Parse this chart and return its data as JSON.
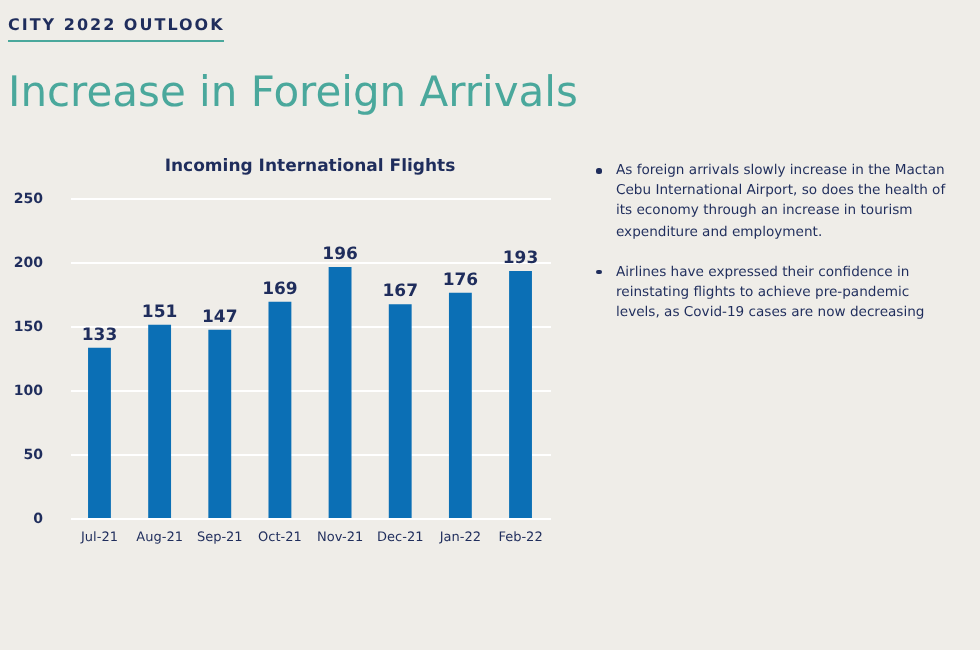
{
  "chart_data": {
    "type": "bar",
    "title": "Incoming International Flights",
    "categories": [
      "Jul-21",
      "Aug-21",
      "Sep-21",
      "Oct-21",
      "Nov-21",
      "Dec-21",
      "Jan-22",
      "Feb-22"
    ],
    "values": [
      133,
      151,
      147,
      169,
      196,
      167,
      176,
      193
    ],
    "color": "#0b6fb5",
    "ylim": [
      0,
      250
    ],
    "yticks": [
      0,
      50,
      100,
      150,
      200,
      250
    ],
    "grid": "y",
    "data_labels": true,
    "annotations": [
      "CITY 2022 OUTLOOK",
      "Increase in Foreign Arrivals",
      "As foreign arrivals slowly increase in the Mactan Cebu International Airport, so does the health of its economy through an increase in tourism expenditure and employment.",
      "Airlines have expressed their confidence in reinstating flights to achieve pre-pandemic levels, as Covid-19 cases are now decreasing"
    ]
  }
}
